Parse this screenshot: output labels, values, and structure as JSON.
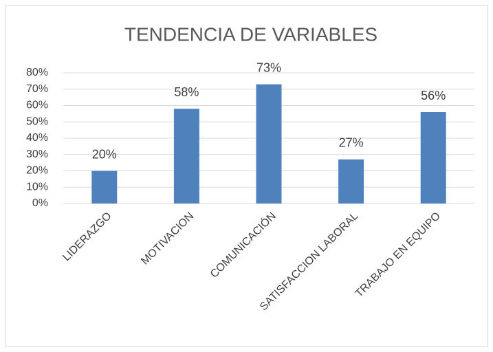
{
  "chart_data": {
    "type": "bar",
    "title": "TENDENCIA DE VARIABLES",
    "categories": [
      "LIDERAZGO",
      "MOTIVACION",
      "COMUNICACIÓN",
      "SATISFACCION LABORAL",
      "TRABAJO EN EQUIPO"
    ],
    "values": [
      20,
      58,
      73,
      27,
      56
    ],
    "value_labels": [
      "20%",
      "58%",
      "73%",
      "27%",
      "56%"
    ],
    "color": "#4f81bd",
    "ylim": [
      0,
      80
    ],
    "yticks": [
      {
        "value": 0,
        "label": "0%"
      },
      {
        "value": 10,
        "label": "10%"
      },
      {
        "value": 20,
        "label": "20%"
      },
      {
        "value": 30,
        "label": "30%"
      },
      {
        "value": 40,
        "label": "40%"
      },
      {
        "value": 50,
        "label": "50%"
      },
      {
        "value": 60,
        "label": "60%"
      },
      {
        "value": 70,
        "label": "70%"
      },
      {
        "value": 80,
        "label": "80%"
      }
    ],
    "grid": true
  }
}
